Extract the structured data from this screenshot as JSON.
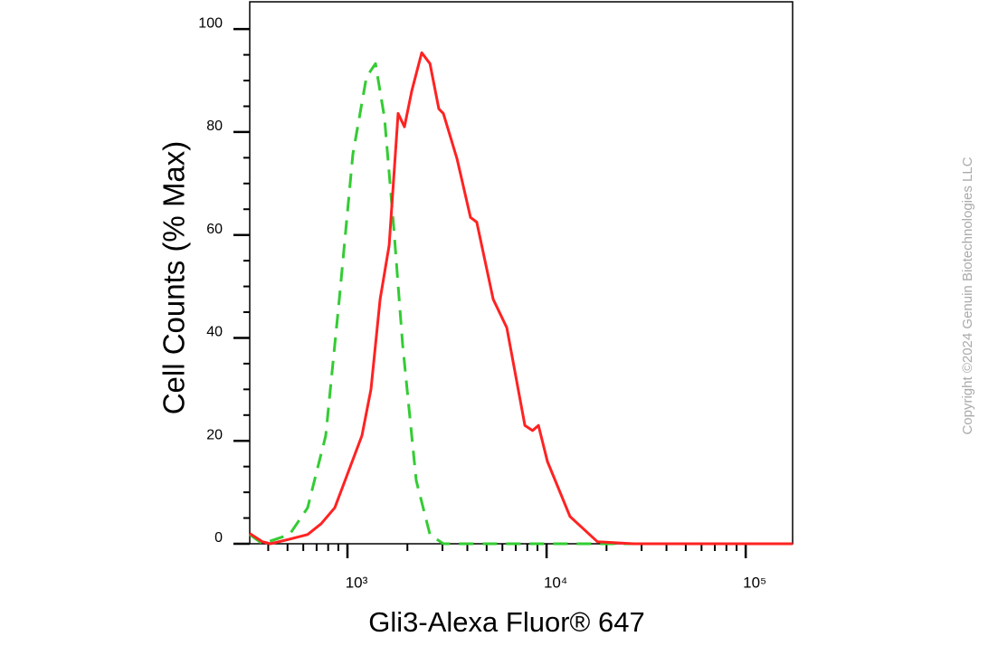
{
  "chart_data": {
    "type": "line",
    "ylabel": "Cell Counts (% Max)",
    "xlabel": "Gli3-Alexa Fluor® 647",
    "copyright": "Copyright ©2024 Genuin Biotechnologies LLC",
    "xscale": "log",
    "xlim": [
      323,
      172000
    ],
    "ylim": [
      0,
      105.3
    ],
    "xticks": [
      {
        "value": 1000,
        "label": "10³"
      },
      {
        "value": 10000,
        "label": "10⁴"
      },
      {
        "value": 100000,
        "label": "10⁵"
      }
    ],
    "x_minor_ticks": [
      400,
      500,
      600,
      700,
      800,
      900,
      2000,
      3000,
      4000,
      5000,
      6000,
      7000,
      8000,
      9000,
      20000,
      30000,
      40000,
      50000,
      60000,
      70000,
      80000,
      90000
    ],
    "yticks": [
      0,
      20,
      40,
      60,
      80,
      100
    ],
    "y_minor_ticks": [
      5,
      10,
      15,
      25,
      30,
      35,
      45,
      50,
      55,
      65,
      70,
      75,
      85,
      90,
      95
    ],
    "series": [
      {
        "color": "#33cc33",
        "dashed": true,
        "x": [
          323,
          374,
          512,
          631,
          778,
          910,
          1065,
          1246,
          1383,
          1536,
          1706,
          1893,
          2215,
          2595,
          3031,
          172000
        ],
        "values": [
          1.8,
          0,
          1.8,
          7,
          21,
          47.5,
          75.7,
          90.7,
          93.3,
          82.7,
          61.6,
          38.7,
          12.3,
          1.8,
          0,
          0
        ]
      },
      {
        "color": "#ff2222",
        "dashed": false,
        "x": [
          323,
          374,
          410,
          512,
          631,
          738,
          864,
          1010,
          1182,
          1313,
          1458,
          1619,
          1797,
          1933,
          2103,
          2360,
          2595,
          2878,
          3031,
          3548,
          4150,
          4460,
          5395,
          6310,
          7780,
          8500,
          9103,
          10100,
          13120,
          17990,
          27300,
          172000
        ],
        "values": [
          2,
          0.4,
          0,
          0.9,
          1.8,
          3.9,
          7,
          14,
          21,
          30,
          47.5,
          58,
          83.6,
          81,
          88,
          95.4,
          93.3,
          84.5,
          83.6,
          74.8,
          63.4,
          62.5,
          47.5,
          42,
          23,
          22,
          23,
          16,
          5.3,
          0.4,
          0,
          0
        ]
      }
    ]
  }
}
